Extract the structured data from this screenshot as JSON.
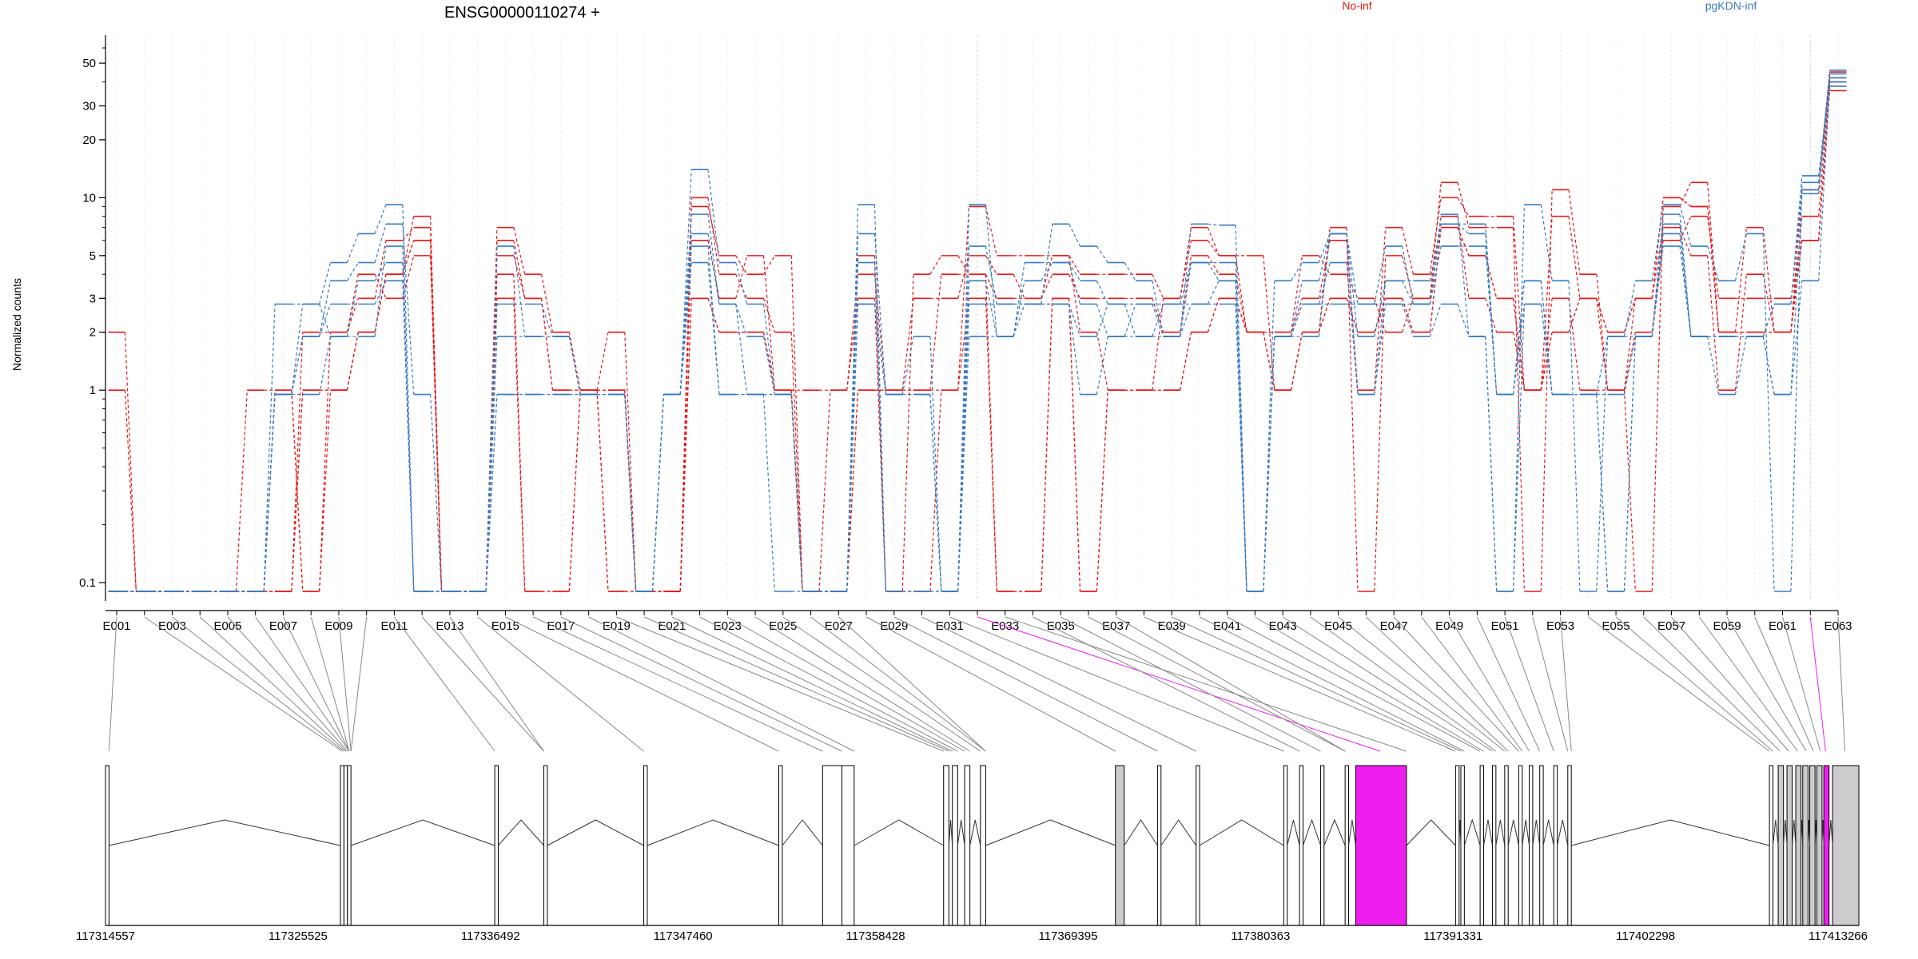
{
  "chart_data": {
    "type": "line",
    "title": "ENSG00000110274 +",
    "ylabel": "Normalized counts",
    "yscale": "log",
    "ylim": [
      0.08,
      60
    ],
    "yticks": [
      0.1,
      1,
      2,
      3,
      5,
      10,
      20,
      30,
      50
    ],
    "ytick_labels": [
      "0.1",
      "1",
      "2",
      "3",
      "5",
      "10",
      "20",
      "30",
      "50"
    ],
    "legend": [
      {
        "name": "No-inf",
        "color": "#e31a1c"
      },
      {
        "name": "pgKDN-inf",
        "color": "#3b7bbd"
      }
    ],
    "exon_ids": [
      "E001",
      "E002",
      "E003",
      "E004",
      "E005",
      "E006",
      "E007",
      "E008",
      "E009",
      "E010",
      "E011",
      "E012",
      "E013",
      "E014",
      "E015",
      "E016",
      "E017",
      "E018",
      "E019",
      "E020",
      "E021",
      "E022",
      "E023",
      "E024",
      "E025",
      "E026",
      "E027",
      "E028",
      "E029",
      "E030",
      "E031",
      "E032",
      "E033",
      "E034",
      "E035",
      "E036",
      "E037",
      "E038",
      "E039",
      "E040",
      "E041",
      "E042",
      "E043",
      "E044",
      "E045",
      "E046",
      "E047",
      "E048",
      "E049",
      "E050",
      "E051",
      "E052",
      "E053",
      "E054",
      "E055",
      "E056",
      "E057",
      "E058",
      "E059",
      "E060",
      "E061",
      "E062",
      "E063"
    ],
    "exon_tick_labels": [
      "E001",
      "E003",
      "E005",
      "E007",
      "E009",
      "E011",
      "E013",
      "E015",
      "E017",
      "E019",
      "E021",
      "E023",
      "E025",
      "E027",
      "E029",
      "E031",
      "E033",
      "E035",
      "E037",
      "E039",
      "E041",
      "E043",
      "E045",
      "E047",
      "E049",
      "E051",
      "E053",
      "E055",
      "E057",
      "E059",
      "E061",
      "E063"
    ],
    "highlighted_exons": [
      "E032",
      "E062"
    ],
    "series": [
      {
        "group": "No-inf",
        "values": [
          2,
          0,
          0,
          0,
          0,
          1,
          1,
          0,
          1,
          2,
          4,
          6,
          0,
          0,
          7,
          4,
          2,
          1,
          2,
          0,
          0,
          9,
          5,
          4,
          5,
          0,
          0,
          5,
          0,
          0,
          1,
          9,
          5,
          5,
          5,
          4,
          4,
          4,
          3,
          6,
          5,
          5,
          1,
          2,
          7,
          0,
          5,
          3,
          12,
          7,
          7,
          0,
          11,
          4,
          1,
          0,
          9,
          12,
          2,
          7,
          2,
          11,
          45
        ]
      },
      {
        "group": "No-inf",
        "values": [
          1,
          0,
          0,
          0,
          0,
          0,
          1,
          0,
          2,
          4,
          3,
          5,
          0,
          0,
          5,
          3,
          1,
          1,
          1,
          0,
          0,
          6,
          3,
          5,
          1,
          1,
          1,
          4,
          1,
          3,
          3,
          5,
          4,
          3,
          4,
          3,
          3,
          3,
          2,
          5,
          4,
          2,
          2,
          3,
          6,
          1,
          7,
          4,
          10,
          8,
          8,
          1,
          8,
          3,
          1,
          2,
          6,
          8,
          3,
          3,
          3,
          6,
          40
        ]
      },
      {
        "group": "No-inf",
        "values": [
          0,
          0,
          0,
          0,
          0,
          0,
          0,
          2,
          2,
          3,
          6,
          7,
          0,
          0,
          6,
          3,
          1,
          1,
          1,
          0,
          0,
          10,
          4,
          3,
          2,
          0,
          1,
          3,
          0,
          4,
          5,
          4,
          3,
          3,
          5,
          2,
          1,
          1,
          1,
          2,
          3,
          2,
          2,
          5,
          4,
          3,
          2,
          3,
          8,
          3,
          2,
          1,
          3,
          1,
          1,
          3,
          7,
          5,
          1,
          4,
          2,
          8,
          42
        ]
      },
      {
        "group": "No-inf",
        "values": [
          0,
          0,
          0,
          0,
          0,
          0,
          0,
          1,
          1,
          2,
          4,
          8,
          0,
          0,
          4,
          0,
          0,
          1,
          0,
          0,
          0,
          3,
          2,
          2,
          1,
          0,
          0,
          1,
          1,
          1,
          4,
          4,
          0,
          0,
          3,
          0,
          1,
          1,
          3,
          7,
          5,
          2,
          1,
          2,
          3,
          2,
          3,
          2,
          7,
          5,
          3,
          1,
          2,
          3,
          2,
          3,
          10,
          9,
          2,
          2,
          2,
          6,
          38
        ]
      },
      {
        "group": "No-inf",
        "values": [
          0,
          0,
          0,
          0,
          0,
          0,
          0,
          1,
          1,
          2,
          4,
          6,
          0,
          0,
          3,
          0,
          0,
          1,
          0,
          0,
          0,
          3,
          2,
          2,
          1,
          0,
          0,
          1,
          1,
          1,
          1,
          3,
          0,
          0,
          3,
          0,
          1,
          1,
          1,
          2,
          3,
          2,
          1,
          2,
          3,
          2,
          3,
          2,
          7,
          5,
          3,
          1,
          2,
          3,
          2,
          3,
          10,
          9,
          2,
          2,
          2,
          6,
          36
        ]
      },
      {
        "group": "pgKDN-inf",
        "values": [
          0,
          0,
          0,
          0,
          0,
          0,
          2.8,
          2.8,
          4.6,
          6.5,
          9.2,
          0,
          0,
          0,
          5.6,
          1.9,
          1.9,
          0.95,
          0.95,
          0,
          0.95,
          14,
          4.6,
          2.8,
          0.95,
          0,
          0,
          9.2,
          0,
          0,
          0,
          5.6,
          2.8,
          2.8,
          7.3,
          5.6,
          4.6,
          3.7,
          1.9,
          7.3,
          7.2,
          0,
          3.7,
          4.6,
          6.5,
          2.8,
          5.6,
          2.8,
          8.2,
          1.9,
          0,
          9.2,
          3.7,
          0,
          1.9,
          3.7,
          9.2,
          5.6,
          3.7,
          6.5,
          0,
          12,
          46
        ]
      },
      {
        "group": "pgKDN-inf",
        "values": [
          0,
          0,
          0,
          0,
          0,
          0,
          0.95,
          1.9,
          3.7,
          4.6,
          7.3,
          0.95,
          0,
          0,
          2.8,
          2.8,
          1.9,
          0.95,
          0.95,
          0,
          0.95,
          8.2,
          2.8,
          1.9,
          0.95,
          0,
          0,
          6.5,
          0.95,
          1.9,
          0,
          9.2,
          1.9,
          3.7,
          4.6,
          3.7,
          2.8,
          2.8,
          2.8,
          4.6,
          4.6,
          0,
          1.9,
          1.9,
          6.5,
          0.95,
          3.7,
          3.7,
          7.3,
          7.3,
          0.95,
          3.7,
          0.95,
          0.95,
          1.9,
          1.9,
          8.2,
          1.9,
          1.9,
          1.9,
          0.95,
          10.5,
          44
        ]
      },
      {
        "group": "pgKDN-inf",
        "values": [
          0,
          0,
          0,
          0,
          0,
          0,
          0.95,
          2.8,
          1.9,
          3.7,
          4.6,
          0,
          0,
          0,
          1.9,
          1.9,
          1.9,
          0.95,
          0.95,
          0,
          0.95,
          6.5,
          2.8,
          0.95,
          0,
          0,
          0,
          2.8,
          0.95,
          0.95,
          0,
          3.7,
          1.9,
          4.6,
          4.6,
          2.8,
          1.9,
          1.9,
          1.9,
          4.6,
          3.7,
          0,
          1.9,
          3.7,
          6.5,
          1.9,
          3.7,
          2.8,
          5.6,
          5.6,
          0.95,
          3.7,
          0.95,
          0.95,
          0.95,
          1.9,
          7.3,
          1.9,
          1.9,
          1.9,
          2.8,
          13,
          42
        ]
      },
      {
        "group": "pgKDN-inf",
        "values": [
          0,
          0,
          0,
          0,
          0,
          0,
          0.95,
          1.9,
          2.8,
          2.8,
          3.7,
          0,
          0,
          0,
          0.95,
          0.95,
          0.95,
          0.95,
          0.95,
          0,
          0.95,
          4.6,
          0.95,
          0.95,
          0.95,
          0,
          0,
          4.6,
          0,
          0,
          0,
          2.8,
          2.8,
          2.8,
          2.8,
          1.9,
          2.8,
          1.9,
          2.8,
          2.8,
          2.8,
          0,
          1.9,
          2.8,
          2.8,
          2.8,
          2.8,
          1.9,
          2.8,
          1.9,
          0,
          2.8,
          0.95,
          0.95,
          0,
          1.9,
          5.6,
          1.9,
          1.9,
          1.9,
          0.95,
          3.7,
          40
        ]
      },
      {
        "group": "pgKDN-inf",
        "values": [
          0,
          0,
          0,
          0,
          0,
          0,
          0.95,
          0.95,
          1.9,
          1.9,
          5.6,
          0,
          0,
          0,
          0.95,
          0.95,
          0.95,
          0.95,
          0.95,
          0,
          0.95,
          5.6,
          0.95,
          0.95,
          0.95,
          0,
          0,
          2.8,
          0.95,
          0.95,
          0,
          1.9,
          1.9,
          2.8,
          2.8,
          0.95,
          1.9,
          2.8,
          1.9,
          2.8,
          3.7,
          0,
          1.9,
          2.8,
          4.6,
          0.95,
          2.8,
          2.8,
          7.3,
          6.5,
          0.95,
          2.8,
          0.95,
          0.95,
          0,
          1.9,
          6.5,
          1.9,
          0.95,
          1.9,
          2.8,
          11,
          38
        ]
      }
    ],
    "genome_axis": {
      "tick_labels": [
        "117314557",
        "117325525",
        "117336492",
        "117347460",
        "117358428",
        "117369395",
        "117380363",
        "117391331",
        "117402298",
        "117413266"
      ]
    },
    "gene_model": {
      "exon_fill": "#ffffff",
      "gray_fill": "#cccccc",
      "highlight_fill": "#ee1fee"
    }
  }
}
